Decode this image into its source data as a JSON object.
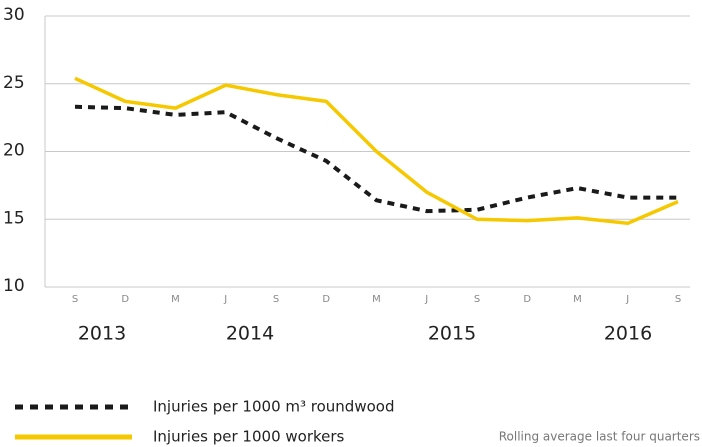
{
  "chart_data": {
    "type": "line",
    "categories": [
      "S",
      "D",
      "M",
      "J",
      "S",
      "D",
      "M",
      "J",
      "S",
      "D",
      "M",
      "J",
      "S"
    ],
    "year_labels": [
      "2013",
      "2014",
      "2015",
      "2016"
    ],
    "series": [
      {
        "name": "Injuries per 1000 m³ roundwood",
        "color": "#1a1a1a",
        "dashed": true,
        "values": [
          23.3,
          23.2,
          22.7,
          22.9,
          21.0,
          19.3,
          16.4,
          15.6,
          15.7,
          16.6,
          17.3,
          16.6,
          16.6
        ]
      },
      {
        "name": "Injuries per 1000 workers",
        "color": "#f5c800",
        "dashed": false,
        "values": [
          25.4,
          23.7,
          23.2,
          24.9,
          24.2,
          23.7,
          20.0,
          17.0,
          15.0,
          14.9,
          15.1,
          14.7,
          16.3
        ]
      }
    ],
    "ylim": [
      10,
      30
    ],
    "yticks": [
      10,
      15,
      20,
      25,
      30
    ],
    "grid": true,
    "note": "Rolling average last four quarters"
  }
}
